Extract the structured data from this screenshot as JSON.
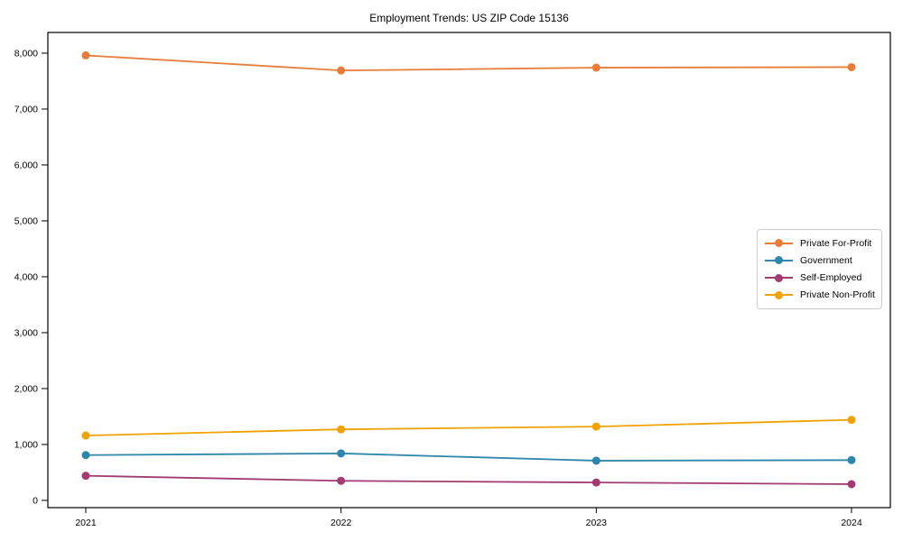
{
  "figure": {
    "title": "Employment Trends: US ZIP Code 15136"
  },
  "chart_data": {
    "type": "line",
    "title": "Employment Trends: US ZIP Code 15136",
    "xlabel": "",
    "ylabel": "",
    "categories": [
      "2021",
      "2022",
      "2023",
      "2024"
    ],
    "x": [
      2021,
      2022,
      2023,
      2024
    ],
    "series": [
      {
        "name": "Private For-Profit",
        "color": "#e87d3a",
        "values": [
          7960,
          7690,
          7740,
          7750
        ]
      },
      {
        "name": "Government",
        "color": "#2e86ab",
        "values": [
          810,
          840,
          710,
          720
        ]
      },
      {
        "name": "Self-Employed",
        "color": "#a23b72",
        "values": [
          440,
          350,
          320,
          290
        ]
      },
      {
        "name": "Private Non-Profit",
        "color": "#f0a202",
        "values": [
          1160,
          1270,
          1320,
          1440
        ]
      }
    ],
    "ylim": [
      -130,
      8370
    ],
    "yticks": [
      0,
      1000,
      2000,
      3000,
      4000,
      5000,
      6000,
      7000,
      8000
    ],
    "ytick_labels": [
      "0",
      "1,000",
      "2,000",
      "3,000",
      "4,000",
      "5,000",
      "6,000",
      "7,000",
      "8,000"
    ],
    "grid": false,
    "legend_position": "center-right",
    "marker": "circle"
  }
}
